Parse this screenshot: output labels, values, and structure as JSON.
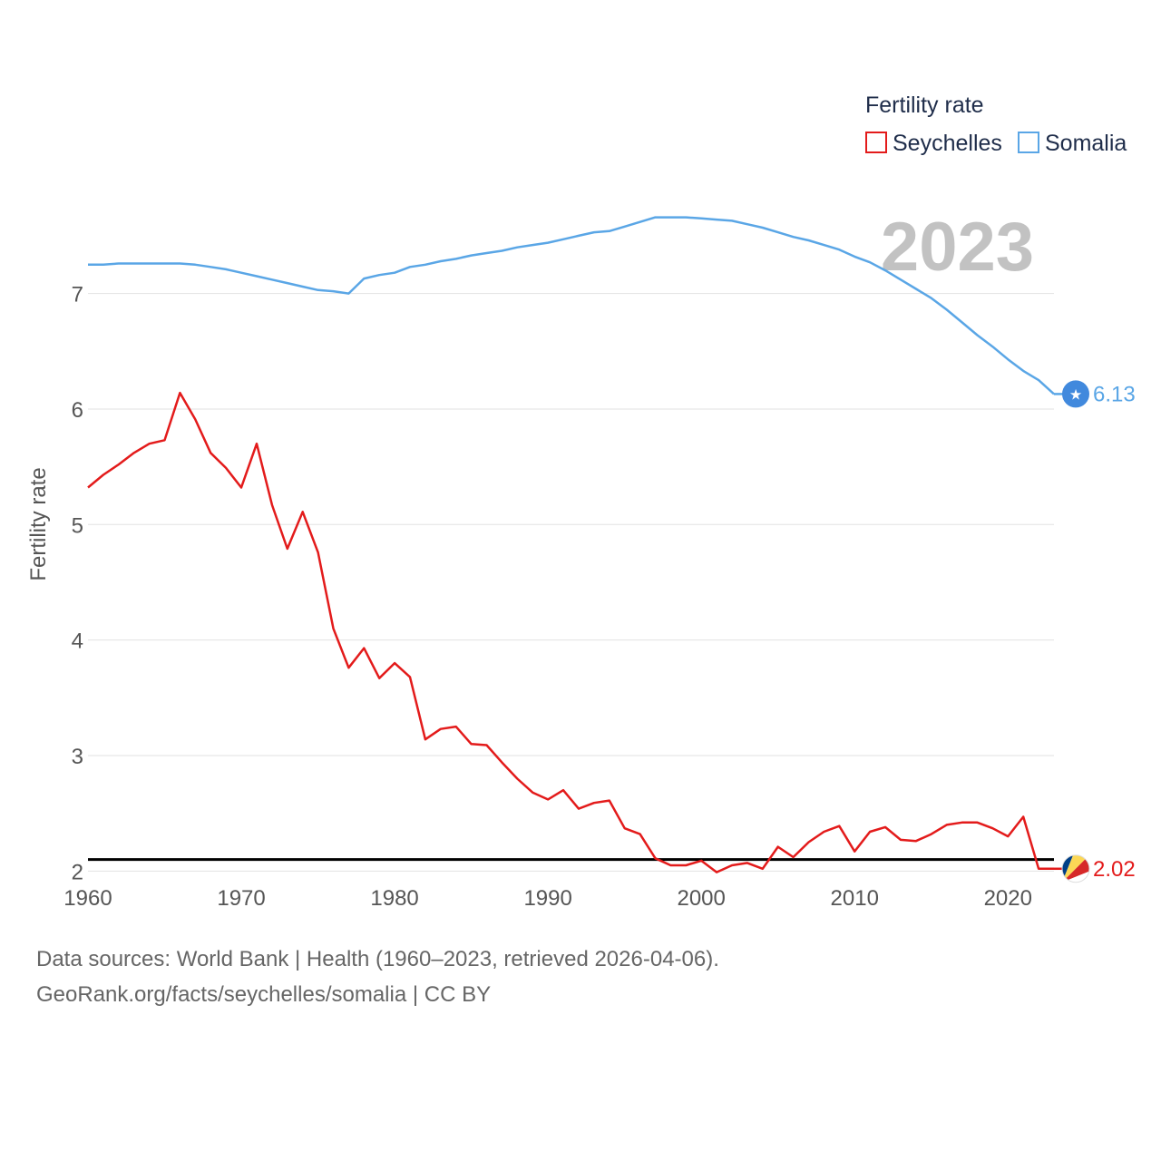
{
  "chart_data": {
    "type": "line",
    "ylabel": "Fertility rate",
    "legend_title": "Fertility rate",
    "legend_position": "top-right",
    "year_label": "2023",
    "xlim": [
      1960,
      2023
    ],
    "ylim": [
      1.5,
      7.9
    ],
    "yticks": [
      2,
      3,
      4,
      5,
      6,
      7
    ],
    "xticks": [
      1960,
      1970,
      1980,
      1990,
      2000,
      2010,
      2020
    ],
    "grid": true,
    "reference_line": {
      "y": 2.1,
      "color": "#000000"
    },
    "x": [
      1960,
      1961,
      1962,
      1963,
      1964,
      1965,
      1966,
      1967,
      1968,
      1969,
      1970,
      1971,
      1972,
      1973,
      1974,
      1975,
      1976,
      1977,
      1978,
      1979,
      1980,
      1981,
      1982,
      1983,
      1984,
      1985,
      1986,
      1987,
      1988,
      1989,
      1990,
      1991,
      1992,
      1993,
      1994,
      1995,
      1996,
      1997,
      1998,
      1999,
      2000,
      2001,
      2002,
      2003,
      2004,
      2005,
      2006,
      2007,
      2008,
      2009,
      2010,
      2011,
      2012,
      2013,
      2014,
      2015,
      2016,
      2017,
      2018,
      2019,
      2020,
      2021,
      2022,
      2023
    ],
    "series": [
      {
        "name": "Seychelles",
        "color": "#e31b1b",
        "end_label": "2.02",
        "flag_icon": "seychelles-flag-icon",
        "values": [
          5.32,
          5.43,
          5.52,
          5.62,
          5.7,
          5.73,
          6.14,
          5.91,
          5.62,
          5.49,
          5.32,
          5.7,
          5.17,
          4.79,
          5.11,
          4.76,
          4.1,
          3.76,
          3.93,
          3.67,
          3.8,
          3.68,
          3.14,
          3.23,
          3.25,
          3.1,
          3.09,
          2.94,
          2.8,
          2.68,
          2.62,
          2.7,
          2.54,
          2.59,
          2.61,
          2.37,
          2.32,
          2.11,
          2.05,
          2.05,
          2.09,
          1.99,
          2.05,
          2.07,
          2.02,
          2.21,
          2.12,
          2.25,
          2.34,
          2.39,
          2.17,
          2.34,
          2.38,
          2.27,
          2.26,
          2.32,
          2.4,
          2.42,
          2.42,
          2.37,
          2.3,
          2.47,
          2.02,
          2.02
        ]
      },
      {
        "name": "Somalia",
        "color": "#5aa6e6",
        "end_label": "6.13",
        "flag_icon": "somalia-flag-icon",
        "values": [
          7.25,
          7.25,
          7.26,
          7.26,
          7.26,
          7.26,
          7.26,
          7.25,
          7.23,
          7.21,
          7.18,
          7.15,
          7.12,
          7.09,
          7.06,
          7.03,
          7.02,
          7.0,
          7.13,
          7.16,
          7.18,
          7.23,
          7.25,
          7.28,
          7.3,
          7.33,
          7.35,
          7.37,
          7.4,
          7.42,
          7.44,
          7.47,
          7.5,
          7.53,
          7.54,
          7.58,
          7.62,
          7.66,
          7.66,
          7.66,
          7.65,
          7.64,
          7.63,
          7.6,
          7.57,
          7.53,
          7.49,
          7.46,
          7.42,
          7.38,
          7.32,
          7.27,
          7.2,
          7.12,
          7.04,
          6.96,
          6.86,
          6.75,
          6.64,
          6.54,
          6.43,
          6.33,
          6.25,
          6.13
        ]
      }
    ]
  },
  "footer": {
    "source": "Data sources: World Bank | Health (1960–2023, retrieved 2026-04-06).",
    "url": "GeoRank.org/facts/seychelles/somalia | CC BY"
  }
}
